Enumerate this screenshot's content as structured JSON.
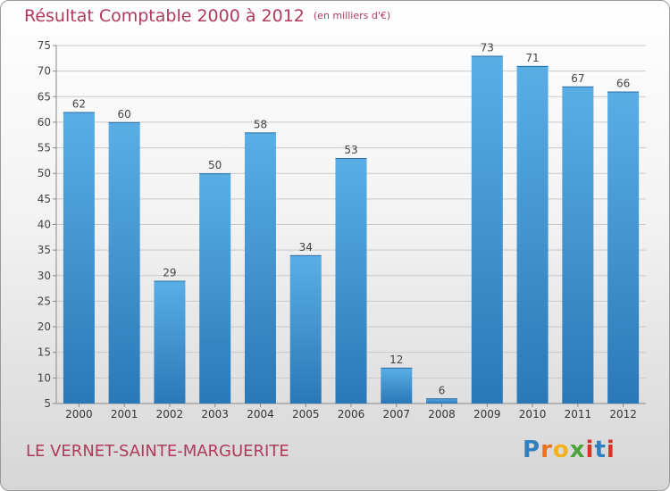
{
  "title": {
    "main": "Résultat Comptable 2000 à 2012",
    "unit": "(en milliers d'€)"
  },
  "commune": "LE VERNET-SAINTE-MARGUERITE",
  "logo": {
    "text": "Proxiti",
    "letters": [
      "P",
      "r",
      "o",
      "x",
      "i",
      "t",
      "i"
    ]
  },
  "chart_data": {
    "type": "bar",
    "title": "Résultat Comptable 2000 à 2012",
    "xlabel": "",
    "ylabel": "",
    "categories": [
      "2000",
      "2001",
      "2002",
      "2003",
      "2004",
      "2005",
      "2006",
      "2007",
      "2008",
      "2009",
      "2010",
      "2011",
      "2012"
    ],
    "values": [
      62,
      60,
      29,
      50,
      58,
      34,
      53,
      12,
      6,
      73,
      71,
      67,
      66
    ],
    "ylim": [
      5,
      75
    ],
    "yticks": [
      5,
      10,
      15,
      20,
      25,
      30,
      35,
      40,
      45,
      50,
      55,
      60,
      65,
      70,
      75
    ],
    "grid": true,
    "bar_color": "#4a9fd9",
    "bar_color_dark": "#2979b9"
  }
}
